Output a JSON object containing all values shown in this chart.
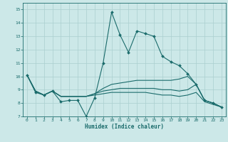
{
  "xlabel": "Humidex (Indice chaleur)",
  "xlim": [
    -0.5,
    23.5
  ],
  "ylim": [
    7,
    15.5
  ],
  "yticks": [
    7,
    8,
    9,
    10,
    11,
    12,
    13,
    14,
    15
  ],
  "xticks": [
    0,
    1,
    2,
    3,
    4,
    5,
    6,
    7,
    8,
    9,
    10,
    11,
    12,
    13,
    14,
    15,
    16,
    17,
    18,
    19,
    20,
    21,
    22,
    23
  ],
  "bg_color": "#cce8e8",
  "line_color": "#1a6b6b",
  "grid_color": "#aacfcf",
  "series_main": [
    10.1,
    8.8,
    8.6,
    8.9,
    8.1,
    8.2,
    8.2,
    7.0,
    8.4,
    11.0,
    14.8,
    13.1,
    11.8,
    13.4,
    13.2,
    13.0,
    11.5,
    11.1,
    10.8,
    10.2,
    9.4,
    8.2,
    8.0,
    7.7
  ],
  "series_line2": [
    10.1,
    8.9,
    8.6,
    8.9,
    8.5,
    8.5,
    8.5,
    8.5,
    8.7,
    9.1,
    9.4,
    9.5,
    9.6,
    9.7,
    9.7,
    9.7,
    9.7,
    9.7,
    9.8,
    10.0,
    9.4,
    8.2,
    8.0,
    7.7
  ],
  "series_line3": [
    10.1,
    8.9,
    8.6,
    8.9,
    8.5,
    8.5,
    8.5,
    8.5,
    8.7,
    8.9,
    9.0,
    9.1,
    9.1,
    9.1,
    9.1,
    9.1,
    9.0,
    9.0,
    8.9,
    9.0,
    9.4,
    8.2,
    8.0,
    7.7
  ],
  "series_line4": [
    10.1,
    8.9,
    8.6,
    8.9,
    8.5,
    8.5,
    8.5,
    8.5,
    8.6,
    8.7,
    8.8,
    8.8,
    8.8,
    8.8,
    8.8,
    8.7,
    8.6,
    8.6,
    8.5,
    8.6,
    8.8,
    8.1,
    7.9,
    7.7
  ]
}
